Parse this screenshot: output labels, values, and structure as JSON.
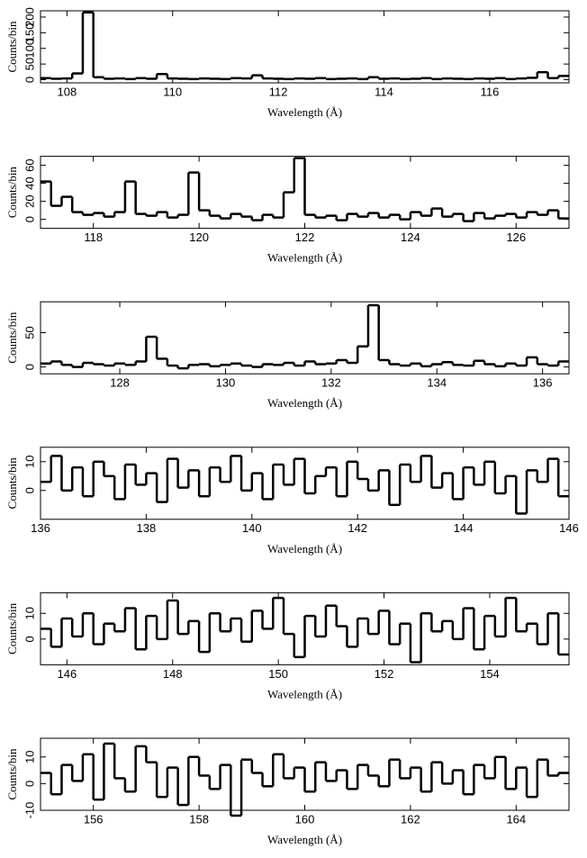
{
  "chart_data": [
    {
      "type": "step",
      "xlabel": "Wavelength (Å)",
      "ylabel": "Counts/bin",
      "color": "#000000",
      "xlim": [
        107.5,
        117.5
      ],
      "xticks": [
        108,
        110,
        112,
        114,
        116
      ],
      "ylim": [
        -10,
        220
      ],
      "yticks": [
        0,
        50,
        100,
        150,
        200
      ],
      "x": [
        107.6,
        107.8,
        108.0,
        108.2,
        108.4,
        108.6,
        108.8,
        109.0,
        109.2,
        109.4,
        109.6,
        109.8,
        110.0,
        110.2,
        110.4,
        110.6,
        110.8,
        111.0,
        111.2,
        111.4,
        111.6,
        111.8,
        112.0,
        112.2,
        112.4,
        112.6,
        112.8,
        113.0,
        113.2,
        113.4,
        113.6,
        113.8,
        114.0,
        114.2,
        114.4,
        114.6,
        114.8,
        115.0,
        115.2,
        115.4,
        115.6,
        115.8,
        116.0,
        116.2,
        116.4,
        116.6,
        116.8,
        117.0,
        117.2,
        117.4
      ],
      "values": [
        5,
        3,
        4,
        20,
        215,
        8,
        3,
        4,
        2,
        5,
        3,
        18,
        4,
        3,
        2,
        4,
        3,
        2,
        5,
        4,
        14,
        4,
        3,
        2,
        4,
        3,
        5,
        2,
        3,
        4,
        2,
        8,
        3,
        4,
        2,
        3,
        5,
        2,
        4,
        3,
        2,
        4,
        3,
        5,
        2,
        4,
        6,
        24,
        5,
        12
      ]
    },
    {
      "type": "step",
      "xlabel": "Wavelength (Å)",
      "ylabel": "Counts/bin",
      "color": "#000000",
      "xlim": [
        117,
        127
      ],
      "xticks": [
        118,
        120,
        122,
        124,
        126
      ],
      "ylim": [
        -10,
        70
      ],
      "yticks": [
        0,
        20,
        40,
        60
      ],
      "x": [
        117.1,
        117.3,
        117.5,
        117.7,
        117.9,
        118.1,
        118.3,
        118.5,
        118.7,
        118.9,
        119.1,
        119.3,
        119.5,
        119.7,
        119.9,
        120.1,
        120.3,
        120.5,
        120.7,
        120.9,
        121.1,
        121.3,
        121.5,
        121.7,
        121.9,
        122.1,
        122.3,
        122.5,
        122.7,
        122.9,
        123.1,
        123.3,
        123.5,
        123.7,
        123.9,
        124.1,
        124.3,
        124.5,
        124.7,
        124.9,
        125.1,
        125.3,
        125.5,
        125.7,
        125.9,
        126.1,
        126.3,
        126.5,
        126.7,
        126.9
      ],
      "values": [
        42,
        15,
        25,
        8,
        5,
        7,
        3,
        8,
        42,
        6,
        4,
        8,
        2,
        5,
        52,
        10,
        4,
        1,
        6,
        3,
        -1,
        5,
        2,
        30,
        68,
        5,
        2,
        4,
        -1,
        6,
        3,
        7,
        2,
        5,
        0,
        8,
        4,
        12,
        3,
        6,
        -2,
        7,
        1,
        4,
        6,
        2,
        8,
        5,
        10,
        1
      ]
    },
    {
      "type": "step",
      "xlabel": "Wavelength (Å)",
      "ylabel": "Counts/bin",
      "color": "#000000",
      "xlim": [
        126.5,
        136.5
      ],
      "xticks": [
        128,
        130,
        132,
        134,
        136
      ],
      "ylim": [
        -10,
        95
      ],
      "yticks": [
        0,
        50
      ],
      "x": [
        126.6,
        126.8,
        127.0,
        127.2,
        127.4,
        127.6,
        127.8,
        128.0,
        128.2,
        128.4,
        128.6,
        128.8,
        129.0,
        129.2,
        129.4,
        129.6,
        129.8,
        130.0,
        130.2,
        130.4,
        130.6,
        130.8,
        131.0,
        131.2,
        131.4,
        131.6,
        131.8,
        132.0,
        132.2,
        132.4,
        132.6,
        132.8,
        133.0,
        133.2,
        133.4,
        133.6,
        133.8,
        134.0,
        134.2,
        134.4,
        134.6,
        134.8,
        135.0,
        135.2,
        135.4,
        135.6,
        135.8,
        136.0,
        136.2,
        136.4
      ],
      "values": [
        5,
        8,
        3,
        0,
        6,
        4,
        2,
        5,
        3,
        8,
        44,
        12,
        2,
        -2,
        3,
        4,
        1,
        3,
        5,
        2,
        0,
        4,
        3,
        6,
        2,
        8,
        4,
        5,
        10,
        6,
        30,
        90,
        10,
        4,
        2,
        5,
        1,
        4,
        7,
        3,
        2,
        9,
        4,
        1,
        5,
        2,
        14,
        4,
        2,
        8
      ]
    },
    {
      "type": "step",
      "xlabel": "Wavelength (Å)",
      "ylabel": "Counts/bin",
      "color": "#000000",
      "xlim": [
        136,
        146
      ],
      "xticks": [
        136,
        138,
        140,
        142,
        144,
        146
      ],
      "ylim": [
        -10,
        15
      ],
      "yticks": [
        0,
        10
      ],
      "x": [
        136.1,
        136.3,
        136.5,
        136.7,
        136.9,
        137.1,
        137.3,
        137.5,
        137.7,
        137.9,
        138.1,
        138.3,
        138.5,
        138.7,
        138.9,
        139.1,
        139.3,
        139.5,
        139.7,
        139.9,
        140.1,
        140.3,
        140.5,
        140.7,
        140.9,
        141.1,
        141.3,
        141.5,
        141.7,
        141.9,
        142.1,
        142.3,
        142.5,
        142.7,
        142.9,
        143.1,
        143.3,
        143.5,
        143.7,
        143.9,
        144.1,
        144.3,
        144.5,
        144.7,
        144.9,
        145.1,
        145.3,
        145.5,
        145.7,
        145.9
      ],
      "values": [
        3,
        12,
        0,
        8,
        -2,
        10,
        5,
        -3,
        9,
        2,
        6,
        -4,
        11,
        1,
        7,
        -2,
        8,
        3,
        12,
        0,
        6,
        -3,
        9,
        2,
        11,
        -1,
        5,
        8,
        -2,
        10,
        4,
        0,
        7,
        -5,
        9,
        3,
        12,
        1,
        6,
        -3,
        8,
        2,
        10,
        -1,
        5,
        -8,
        7,
        3,
        11,
        -2
      ]
    },
    {
      "type": "step",
      "xlabel": "Wavelength (Å)",
      "ylabel": "Counts/bin",
      "color": "#000000",
      "xlim": [
        145.5,
        155.5
      ],
      "xticks": [
        146,
        148,
        150,
        152,
        154
      ],
      "ylim": [
        -10,
        18
      ],
      "yticks": [
        0,
        10
      ],
      "x": [
        145.6,
        145.8,
        146.0,
        146.2,
        146.4,
        146.6,
        146.8,
        147.0,
        147.2,
        147.4,
        147.6,
        147.8,
        148.0,
        148.2,
        148.4,
        148.6,
        148.8,
        149.0,
        149.2,
        149.4,
        149.6,
        149.8,
        150.0,
        150.2,
        150.4,
        150.6,
        150.8,
        151.0,
        151.2,
        151.4,
        151.6,
        151.8,
        152.0,
        152.2,
        152.4,
        152.6,
        152.8,
        153.0,
        153.2,
        153.4,
        153.6,
        153.8,
        154.0,
        154.2,
        154.4,
        154.6,
        154.8,
        155.0,
        155.2,
        155.4
      ],
      "values": [
        4,
        -3,
        8,
        1,
        10,
        -2,
        6,
        3,
        12,
        -4,
        9,
        0,
        15,
        2,
        7,
        -5,
        10,
        3,
        8,
        -1,
        11,
        4,
        16,
        2,
        -7,
        9,
        1,
        13,
        5,
        -3,
        8,
        2,
        11,
        -2,
        6,
        -9,
        10,
        3,
        7,
        0,
        12,
        -4,
        9,
        1,
        16,
        3,
        6,
        -2,
        10,
        -6
      ]
    },
    {
      "type": "step",
      "xlabel": "Wavelength (Å)",
      "ylabel": "Counts/bin",
      "color": "#000000",
      "xlim": [
        155,
        165
      ],
      "xticks": [
        156,
        158,
        160,
        162,
        164
      ],
      "ylim": [
        -10,
        17
      ],
      "yticks": [
        -10,
        0,
        10
      ],
      "x": [
        155.1,
        155.3,
        155.5,
        155.7,
        155.9,
        156.1,
        156.3,
        156.5,
        156.7,
        156.9,
        157.1,
        157.3,
        157.5,
        157.7,
        157.9,
        158.1,
        158.3,
        158.5,
        158.7,
        158.9,
        159.1,
        159.3,
        159.5,
        159.7,
        159.9,
        160.1,
        160.3,
        160.5,
        160.7,
        160.9,
        161.1,
        161.3,
        161.5,
        161.7,
        161.9,
        162.1,
        162.3,
        162.5,
        162.7,
        162.9,
        163.1,
        163.3,
        163.5,
        163.7,
        163.9,
        164.1,
        164.3,
        164.5,
        164.7,
        164.9
      ],
      "values": [
        4,
        -4,
        7,
        1,
        11,
        -6,
        15,
        2,
        -3,
        14,
        8,
        -5,
        6,
        -8,
        10,
        3,
        -2,
        7,
        -12,
        9,
        4,
        -1,
        11,
        2,
        6,
        -3,
        8,
        1,
        5,
        -2,
        7,
        3,
        -1,
        9,
        2,
        6,
        -3,
        8,
        0,
        5,
        -4,
        7,
        2,
        10,
        -2,
        6,
        -5,
        9,
        3,
        4
      ]
    }
  ]
}
